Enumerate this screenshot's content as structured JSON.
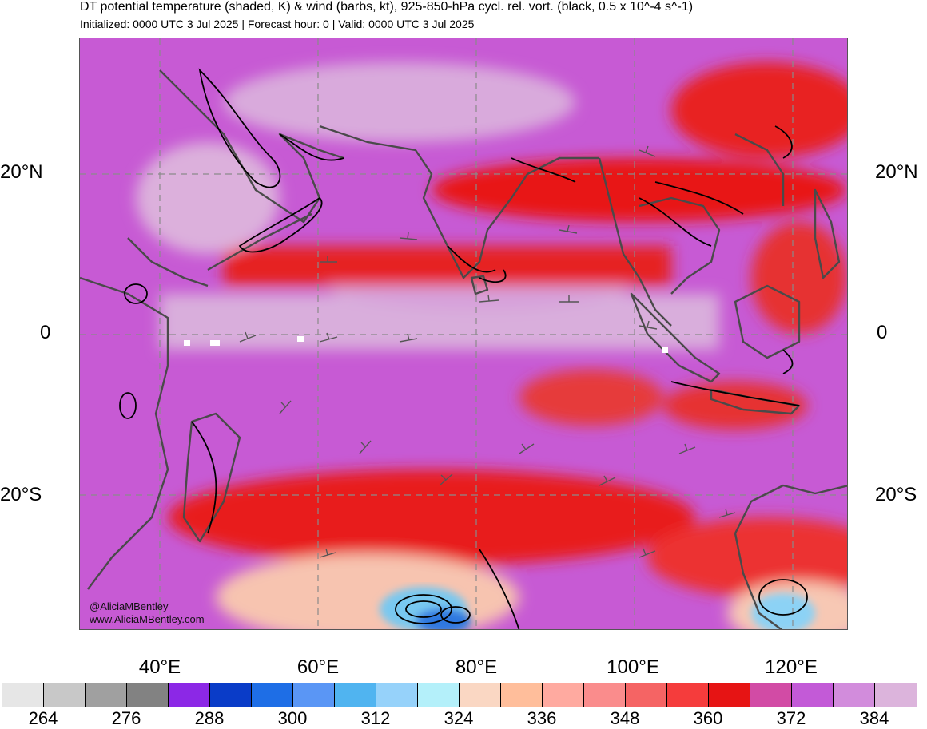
{
  "header": {
    "title": "DT potential temperature (shaded, K) & wind (barbs, kt), 925-850-hPa cycl. rel. vort. (black, 0.5 x 10^-4 s^-1)",
    "subtitle": "Initialized: 0000 UTC 3 Jul 2025 | Forecast hour: 0 | Valid: 0000 UTC 3 Jul 2025"
  },
  "map": {
    "lat_labels": {
      "n20": "20°N",
      "eq": "0",
      "s20": "20°S"
    },
    "lon_labels": [
      "40°E",
      "60°E",
      "80°E",
      "100°E",
      "120°E"
    ],
    "lon_range": [
      30,
      127
    ],
    "lat_range": [
      -37,
      37
    ],
    "watermark": {
      "handle": "@AliciaMBentley",
      "site": "www.AliciaMBentley.com"
    }
  },
  "colorbar": {
    "colors": [
      "#e6e6e6",
      "#c8c8c8",
      "#a0a0a0",
      "#828282",
      "#8c28e6",
      "#0a3cc8",
      "#1e6ee6",
      "#5a96f5",
      "#50b4f0",
      "#96d2fa",
      "#b4f0fa",
      "#fad7c3",
      "#ffbe9b",
      "#ffaaa0",
      "#fa8c8c",
      "#f56464",
      "#f53c3c",
      "#e61414",
      "#d24ba5",
      "#c35ad7",
      "#d28cdc",
      "#dcb4dc"
    ],
    "labels": [
      "264",
      "276",
      "288",
      "300",
      "312",
      "324",
      "336",
      "348",
      "360",
      "372",
      "384"
    ]
  }
}
